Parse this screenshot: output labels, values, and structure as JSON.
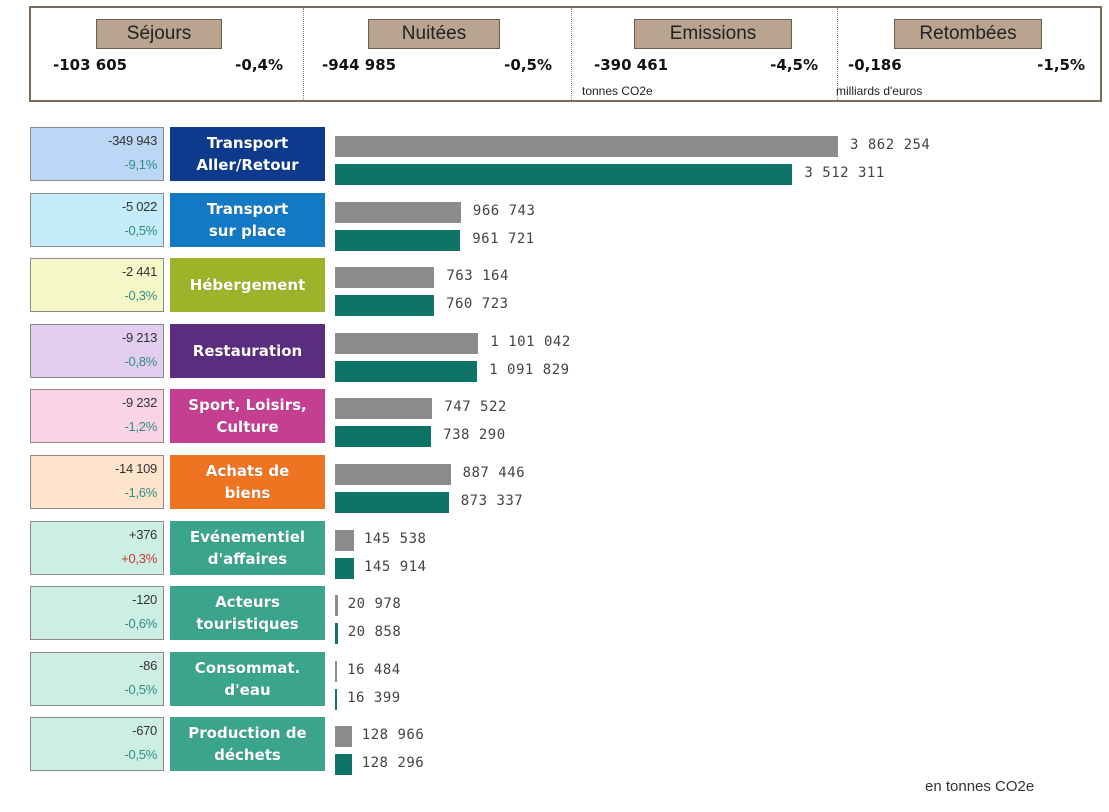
{
  "kpis": [
    {
      "title": "Séjours",
      "value": "-103 605",
      "pct": "-0,4%",
      "unit": ""
    },
    {
      "title": "Nuitées",
      "value": "-944 985",
      "pct": "-0,5%",
      "unit": ""
    },
    {
      "title": "Emissions",
      "value": "-390 461",
      "pct": "-4,5%",
      "unit": "tonnes CO2e"
    },
    {
      "title": "Retombées",
      "value": "-0,186",
      "pct": "-1,5%",
      "unit": "milliards d'euros"
    }
  ],
  "chart_data": {
    "type": "bar",
    "orientation": "horizontal",
    "unit": "en tonnes CO2e",
    "categories": [
      "Transport\nAller/Retour",
      "Transport\nsur place",
      "Hébergement",
      "Restauration",
      "Sport, Loisirs,\nCulture",
      "Achats de\nbiens",
      "Evénementiel\nd'affaires",
      "Acteurs\ntouristiques",
      "Consommat.\nd'eau",
      "Production de\ndéchets"
    ],
    "series": [
      {
        "values": [
          3862254,
          966743,
          763164,
          1101042,
          747522,
          887446,
          145538,
          20978,
          16484,
          128966
        ],
        "labels": [
          "3 862 254",
          "966 743",
          "763 164",
          "1 101 042",
          "747 522",
          "887 446",
          "145 538",
          "20 978",
          "16 484",
          "128 966"
        ],
        "color": "#8c8c8c"
      },
      {
        "values": [
          3512311,
          961721,
          760723,
          1091829,
          738290,
          873337,
          145914,
          20858,
          16399,
          128296
        ],
        "labels": [
          "3 512 311",
          "961 721",
          "760 723",
          "1 091 829",
          "738 290",
          "873 337",
          "145 914",
          "20 858",
          "16 399",
          "128 296"
        ],
        "color": "#0f7468"
      }
    ],
    "deltas": [
      {
        "abs": "-349 943",
        "pct": "-9,1%"
      },
      {
        "abs": "-5 022",
        "pct": "-0,5%"
      },
      {
        "abs": "-2 441",
        "pct": "-0,3%"
      },
      {
        "abs": "-9 213",
        "pct": "-0,8%"
      },
      {
        "abs": "-9 232",
        "pct": "-1,2%"
      },
      {
        "abs": "-14 109",
        "pct": "-1,6%"
      },
      {
        "abs": "+376",
        "pct": "+0,3%"
      },
      {
        "abs": "-120",
        "pct": "-0,6%"
      },
      {
        "abs": "-86",
        "pct": "-0,5%"
      },
      {
        "abs": "-670",
        "pct": "-0,5%"
      }
    ],
    "category_colors": [
      "#0d3a8c",
      "#1479c4",
      "#9bb42a",
      "#5a2d7e",
      "#c43f92",
      "#ee7422",
      "#3aa58c",
      "#3aa58c",
      "#3aa58c",
      "#3aa58c"
    ],
    "delta_fills": [
      "#bcd6f5",
      "#c4ecfa",
      "#f5f7c9",
      "#e2cdf0",
      "#fad4e6",
      "#fde2cc",
      "#cdeee3",
      "#cdeee3",
      "#cdeee3",
      "#cdeee3"
    ],
    "delta_pct_colors": [
      "#2e8e84",
      "#2e8e84",
      "#2e8e84",
      "#2e8e84",
      "#2e8e84",
      "#2e8e84",
      "#c0392b",
      "#2e8e84",
      "#2e8e84",
      "#2e8e84"
    ]
  }
}
